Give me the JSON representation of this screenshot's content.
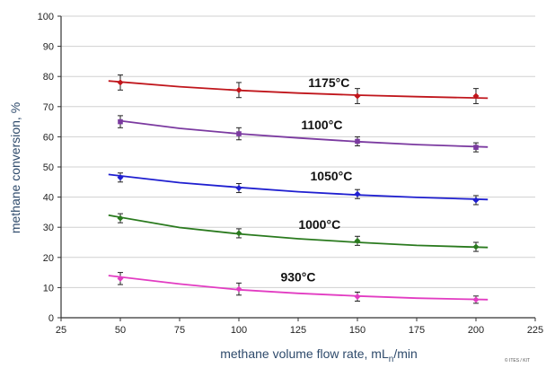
{
  "chart_data": {
    "type": "scatter",
    "xlabel": "methane volume flow rate, mL",
    "xlabel_subscript": "n",
    "xlabel_suffix": "/min",
    "ylabel": "methane conversion, %",
    "xlim": [
      25,
      225
    ],
    "ylim": [
      0,
      100
    ],
    "xticks": [
      25,
      50,
      75,
      100,
      125,
      150,
      175,
      200,
      225
    ],
    "yticks": [
      0,
      10,
      20,
      30,
      40,
      50,
      60,
      70,
      80,
      90,
      100
    ],
    "grid": "horizontal",
    "credit": "© ITES / KIT",
    "series": [
      {
        "name": "1175°C",
        "color": "#c0161c",
        "marker": "diamond",
        "x": [
          50,
          100,
          150,
          200
        ],
        "y": [
          78,
          75.5,
          73.5,
          73.5
        ],
        "err": [
          2.5,
          2.5,
          2.5,
          2.5
        ],
        "fit": {
          "x": [
            45,
            75,
            100,
            125,
            150,
            175,
            205
          ],
          "y": [
            78.5,
            76.6,
            75.4,
            74.5,
            73.8,
            73.3,
            72.8
          ]
        }
      },
      {
        "name": "1100°C",
        "color": "#7b3aa0",
        "marker": "square",
        "x": [
          50,
          100,
          150,
          200
        ],
        "y": [
          65,
          61,
          58.5,
          56.5
        ],
        "err": [
          2,
          2,
          1.5,
          1.5
        ],
        "fit": {
          "x": [
            50,
            75,
            100,
            125,
            150,
            175,
            205
          ],
          "y": [
            65.3,
            62.8,
            61,
            59.6,
            58.4,
            57.4,
            56.6
          ]
        }
      },
      {
        "name": "1050°C",
        "color": "#1f1fd0",
        "marker": "diamond",
        "x": [
          50,
          100,
          150,
          200
        ],
        "y": [
          46.5,
          43,
          41,
          39
        ],
        "err": [
          1.5,
          1.5,
          1.5,
          1.5
        ],
        "fit": {
          "x": [
            45,
            75,
            100,
            125,
            150,
            175,
            205
          ],
          "y": [
            47.5,
            44.8,
            43.2,
            41.8,
            40.7,
            39.9,
            39.2
          ]
        }
      },
      {
        "name": "1000°C",
        "color": "#2a7a1e",
        "marker": "diamond",
        "x": [
          50,
          100,
          150,
          200
        ],
        "y": [
          33,
          28,
          25.5,
          23.5
        ],
        "err": [
          1.5,
          1.5,
          1.5,
          1.5
        ],
        "fit": {
          "x": [
            45,
            75,
            100,
            125,
            150,
            175,
            205
          ],
          "y": [
            34,
            29.9,
            27.8,
            26.2,
            25,
            24,
            23.3
          ]
        }
      },
      {
        "name": "930°C",
        "color": "#e23cc2",
        "marker": "diamond",
        "x": [
          50,
          100,
          150,
          200
        ],
        "y": [
          13,
          9.5,
          7,
          6
        ],
        "err": [
          2,
          2,
          1.5,
          1.2
        ],
        "fit": {
          "x": [
            45,
            75,
            100,
            125,
            150,
            175,
            205
          ],
          "y": [
            14,
            11.2,
            9.3,
            8.1,
            7.2,
            6.5,
            6
          ]
        }
      }
    ],
    "labels": [
      {
        "text": "1175°C",
        "x": 138,
        "y": 78
      },
      {
        "text": "1100°C",
        "x": 135,
        "y": 64
      },
      {
        "text": "1050°C",
        "x": 139,
        "y": 47
      },
      {
        "text": "1000°C",
        "x": 134,
        "y": 31
      },
      {
        "text": "930°C",
        "x": 125,
        "y": 13.5
      }
    ]
  }
}
